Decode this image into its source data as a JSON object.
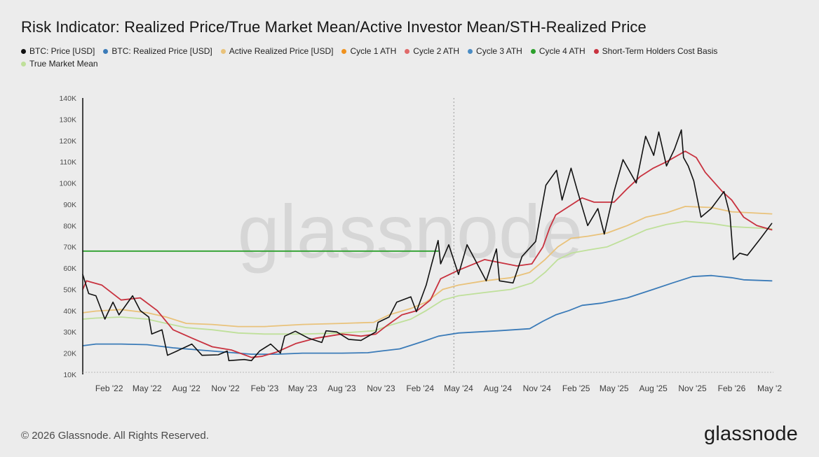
{
  "title": "Risk Indicator: Realized Price/True Market Mean/Active Investor Mean/STH-Realized Price",
  "watermark": "glassnode",
  "footer": {
    "copyright": "© 2026 Glassnode. All Rights Reserved.",
    "logo": "glassnode"
  },
  "legend": [
    {
      "label": "BTC: Price [USD]",
      "color": "#111111"
    },
    {
      "label": "BTC: Realized Price [USD]",
      "color": "#3b7bb8"
    },
    {
      "label": "Active Realized Price [USD]",
      "color": "#e9c27a"
    },
    {
      "label": "Cycle 1 ATH",
      "color": "#f0921e"
    },
    {
      "label": "Cycle 2 ATH",
      "color": "#e06a6a"
    },
    {
      "label": "Cycle 3 ATH",
      "color": "#4a8cc4"
    },
    {
      "label": "Cycle 4 ATH",
      "color": "#2ca02c"
    },
    {
      "label": "Short-Term Holders Cost Basis",
      "color": "#c8323f"
    },
    {
      "label": "True Market Mean",
      "color": "#bfe09a"
    }
  ],
  "chart_data": {
    "type": "line",
    "xlabel": "",
    "ylabel": "",
    "y_scale": "linear",
    "ylim": [
      10000,
      140000
    ],
    "y_ticks": [
      10000,
      20000,
      30000,
      40000,
      50000,
      60000,
      70000,
      80000,
      90000,
      100000,
      110000,
      120000,
      130000,
      140000
    ],
    "y_tick_labels": [
      "10K",
      "20K",
      "30K",
      "40K",
      "50K",
      "60K",
      "70K",
      "80K",
      "90K",
      "100K",
      "110K",
      "120K",
      "130K",
      "140K"
    ],
    "xlim": [
      "2021-12-01",
      "2026-05-10"
    ],
    "x_ticks": [
      "2022-02-01",
      "2022-05-01",
      "2022-08-01",
      "2022-11-01",
      "2023-02-01",
      "2023-05-01",
      "2023-08-01",
      "2023-11-01",
      "2024-02-01",
      "2024-05-01",
      "2024-08-01",
      "2024-11-01",
      "2025-02-01",
      "2025-05-01",
      "2025-08-01",
      "2025-11-01",
      "2026-02-01",
      "2026-05-01"
    ],
    "x_tick_labels": [
      "Feb '22",
      "May '22",
      "Aug '22",
      "Nov '22",
      "Feb '23",
      "May '23",
      "Aug '23",
      "Nov '23",
      "Feb '24",
      "May '24",
      "Aug '24",
      "Nov '24",
      "Feb '25",
      "May '25",
      "Aug '25",
      "Nov '25",
      "Feb '26",
      "May '2"
    ],
    "grid": false,
    "legend_position": "top",
    "vertical_marker": "2024-04-20",
    "series": [
      {
        "name": "BTC: Price [USD]",
        "color": "#111111",
        "points": [
          [
            "2021-12-01",
            57000
          ],
          [
            "2021-12-15",
            48000
          ],
          [
            "2022-01-01",
            47000
          ],
          [
            "2022-01-22",
            36000
          ],
          [
            "2022-02-10",
            44000
          ],
          [
            "2022-02-24",
            38000
          ],
          [
            "2022-03-28",
            47000
          ],
          [
            "2022-04-15",
            40000
          ],
          [
            "2022-05-05",
            37000
          ],
          [
            "2022-05-12",
            29000
          ],
          [
            "2022-06-05",
            31000
          ],
          [
            "2022-06-18",
            19000
          ],
          [
            "2022-07-10",
            21000
          ],
          [
            "2022-08-14",
            24300
          ],
          [
            "2022-09-07",
            19000
          ],
          [
            "2022-10-15",
            19200
          ],
          [
            "2022-11-05",
            21000
          ],
          [
            "2022-11-09",
            16500
          ],
          [
            "2022-12-15",
            17000
          ],
          [
            "2023-01-01",
            16500
          ],
          [
            "2023-01-20",
            21000
          ],
          [
            "2023-02-15",
            24300
          ],
          [
            "2023-03-10",
            20000
          ],
          [
            "2023-03-20",
            28000
          ],
          [
            "2023-04-14",
            30300
          ],
          [
            "2023-05-15",
            27000
          ],
          [
            "2023-06-15",
            25000
          ],
          [
            "2023-06-25",
            30500
          ],
          [
            "2023-07-20",
            30000
          ],
          [
            "2023-08-17",
            26500
          ],
          [
            "2023-09-15",
            26000
          ],
          [
            "2023-10-20",
            30000
          ],
          [
            "2023-10-25",
            34500
          ],
          [
            "2023-11-20",
            37000
          ],
          [
            "2023-12-08",
            44000
          ],
          [
            "2024-01-10",
            46500
          ],
          [
            "2024-01-23",
            39500
          ],
          [
            "2024-02-15",
            52000
          ],
          [
            "2024-02-28",
            62000
          ],
          [
            "2024-03-14",
            73000
          ],
          [
            "2024-03-20",
            62000
          ],
          [
            "2024-04-08",
            71000
          ],
          [
            "2024-05-01",
            57000
          ],
          [
            "2024-05-21",
            71000
          ],
          [
            "2024-07-05",
            54000
          ],
          [
            "2024-07-29",
            69000
          ],
          [
            "2024-08-05",
            54000
          ],
          [
            "2024-09-06",
            53000
          ],
          [
            "2024-09-27",
            65500
          ],
          [
            "2024-10-29",
            72500
          ],
          [
            "2024-11-12",
            88000
          ],
          [
            "2024-11-22",
            99000
          ],
          [
            "2024-12-17",
            106000
          ],
          [
            "2024-12-30",
            92000
          ],
          [
            "2025-01-20",
            107000
          ],
          [
            "2025-02-03",
            97000
          ],
          [
            "2025-02-28",
            80000
          ],
          [
            "2025-03-24",
            88000
          ],
          [
            "2025-04-08",
            76000
          ],
          [
            "2025-05-01",
            96000
          ],
          [
            "2025-05-22",
            111000
          ],
          [
            "2025-06-22",
            100000
          ],
          [
            "2025-07-14",
            122000
          ],
          [
            "2025-08-02",
            113000
          ],
          [
            "2025-08-14",
            124000
          ],
          [
            "2025-09-01",
            108000
          ],
          [
            "2025-09-20",
            116000
          ],
          [
            "2025-10-06",
            125000
          ],
          [
            "2025-10-11",
            112000
          ],
          [
            "2025-10-22",
            108000
          ],
          [
            "2025-11-04",
            101000
          ],
          [
            "2025-11-21",
            84000
          ],
          [
            "2025-12-15",
            88000
          ],
          [
            "2026-01-14",
            96000
          ],
          [
            "2026-01-28",
            85000
          ],
          [
            "2026-02-05",
            64000
          ],
          [
            "2026-02-20",
            67000
          ],
          [
            "2026-03-10",
            66000
          ],
          [
            "2026-04-10",
            74000
          ],
          [
            "2026-05-06",
            81000
          ]
        ]
      },
      {
        "name": "BTC: Realized Price [USD]",
        "color": "#3b7bb8",
        "points": [
          [
            "2021-12-01",
            23500
          ],
          [
            "2022-01-01",
            24300
          ],
          [
            "2022-03-01",
            24300
          ],
          [
            "2022-05-01",
            24000
          ],
          [
            "2022-07-01",
            22500
          ],
          [
            "2022-09-01",
            21500
          ],
          [
            "2022-11-01",
            20500
          ],
          [
            "2023-01-01",
            19500
          ],
          [
            "2023-03-01",
            19500
          ],
          [
            "2023-05-01",
            20000
          ],
          [
            "2023-08-01",
            20000
          ],
          [
            "2023-10-01",
            20200
          ],
          [
            "2023-11-01",
            21000
          ],
          [
            "2023-12-15",
            22000
          ],
          [
            "2024-01-15",
            24000
          ],
          [
            "2024-02-15",
            26000
          ],
          [
            "2024-03-15",
            28000
          ],
          [
            "2024-05-01",
            29500
          ],
          [
            "2024-08-01",
            30500
          ],
          [
            "2024-10-15",
            31500
          ],
          [
            "2024-11-15",
            35000
          ],
          [
            "2024-12-15",
            38000
          ],
          [
            "2025-01-15",
            40000
          ],
          [
            "2025-02-15",
            42500
          ],
          [
            "2025-04-01",
            43500
          ],
          [
            "2025-06-01",
            46000
          ],
          [
            "2025-08-01",
            50000
          ],
          [
            "2025-09-15",
            53000
          ],
          [
            "2025-11-01",
            56000
          ],
          [
            "2025-12-15",
            56500
          ],
          [
            "2026-02-01",
            55500
          ],
          [
            "2026-03-01",
            54500
          ],
          [
            "2026-05-06",
            54000
          ]
        ]
      },
      {
        "name": "Active Realized Price [USD]",
        "color": "#e9c27a",
        "points": [
          [
            "2021-12-01",
            39000
          ],
          [
            "2022-01-01",
            39800
          ],
          [
            "2022-03-01",
            40500
          ],
          [
            "2022-05-01",
            39000
          ],
          [
            "2022-06-15",
            37000
          ],
          [
            "2022-08-01",
            34000
          ],
          [
            "2022-10-01",
            33500
          ],
          [
            "2022-12-01",
            32500
          ],
          [
            "2023-02-01",
            32500
          ],
          [
            "2023-05-01",
            33500
          ],
          [
            "2023-08-01",
            34000
          ],
          [
            "2023-10-15",
            34500
          ],
          [
            "2023-11-20",
            38000
          ],
          [
            "2024-01-10",
            41000
          ],
          [
            "2024-02-15",
            44000
          ],
          [
            "2024-03-25",
            50000
          ],
          [
            "2024-05-01",
            52000
          ],
          [
            "2024-07-01",
            54000
          ],
          [
            "2024-09-01",
            55500
          ],
          [
            "2024-10-15",
            58000
          ],
          [
            "2024-11-20",
            64000
          ],
          [
            "2024-12-20",
            70000
          ],
          [
            "2025-01-20",
            74000
          ],
          [
            "2025-03-01",
            75000
          ],
          [
            "2025-04-15",
            76500
          ],
          [
            "2025-06-01",
            80000
          ],
          [
            "2025-07-15",
            84000
          ],
          [
            "2025-09-01",
            86000
          ],
          [
            "2025-10-15",
            89000
          ],
          [
            "2025-12-15",
            88500
          ],
          [
            "2026-02-01",
            86500
          ],
          [
            "2026-05-06",
            85500
          ]
        ]
      },
      {
        "name": "Cycle 4 ATH",
        "color": "#2ca02c",
        "points": [
          [
            "2021-12-01",
            68000
          ],
          [
            "2024-03-14",
            68000
          ]
        ]
      },
      {
        "name": "Short-Term Holders Cost Basis",
        "color": "#c8323f",
        "points": [
          [
            "2021-12-01",
            50000
          ],
          [
            "2021-12-10",
            54000
          ],
          [
            "2022-01-15",
            52000
          ],
          [
            "2022-03-01",
            45000
          ],
          [
            "2022-04-15",
            46000
          ],
          [
            "2022-05-25",
            40000
          ],
          [
            "2022-07-01",
            31000
          ],
          [
            "2022-08-15",
            27000
          ],
          [
            "2022-10-01",
            23000
          ],
          [
            "2022-11-15",
            21500
          ],
          [
            "2023-01-01",
            18000
          ],
          [
            "2023-01-25",
            18500
          ],
          [
            "2023-03-01",
            20500
          ],
          [
            "2023-04-15",
            24500
          ],
          [
            "2023-06-01",
            27000
          ],
          [
            "2023-08-01",
            29000
          ],
          [
            "2023-09-15",
            28000
          ],
          [
            "2023-10-20",
            29000
          ],
          [
            "2023-11-15",
            33000
          ],
          [
            "2023-12-20",
            38000
          ],
          [
            "2024-01-25",
            40000
          ],
          [
            "2024-02-25",
            45000
          ],
          [
            "2024-03-20",
            55000
          ],
          [
            "2024-05-01",
            59000
          ],
          [
            "2024-07-01",
            64000
          ],
          [
            "2024-09-15",
            61000
          ],
          [
            "2024-10-20",
            62000
          ],
          [
            "2024-11-15",
            70000
          ],
          [
            "2024-12-01",
            79000
          ],
          [
            "2024-12-15",
            85000
          ],
          [
            "2025-01-15",
            89000
          ],
          [
            "2025-02-15",
            93000
          ],
          [
            "2025-03-15",
            91000
          ],
          [
            "2025-05-01",
            91000
          ],
          [
            "2025-05-30",
            97000
          ],
          [
            "2025-07-01",
            103000
          ],
          [
            "2025-08-01",
            107000
          ],
          [
            "2025-09-01",
            110000
          ],
          [
            "2025-10-15",
            115000
          ],
          [
            "2025-11-10",
            112000
          ],
          [
            "2025-12-01",
            105000
          ],
          [
            "2026-01-10",
            96000
          ],
          [
            "2026-02-01",
            92000
          ],
          [
            "2026-03-01",
            84000
          ],
          [
            "2026-04-01",
            80000
          ],
          [
            "2026-05-06",
            78000
          ]
        ]
      },
      {
        "name": "True Market Mean",
        "color": "#bfe09a",
        "points": [
          [
            "2021-12-01",
            36000
          ],
          [
            "2022-01-01",
            36500
          ],
          [
            "2022-03-01",
            37000
          ],
          [
            "2022-05-01",
            36000
          ],
          [
            "2022-06-15",
            34000
          ],
          [
            "2022-08-01",
            32000
          ],
          [
            "2022-10-01",
            31000
          ],
          [
            "2022-12-01",
            29500
          ],
          [
            "2023-02-01",
            29000
          ],
          [
            "2023-05-01",
            29000
          ],
          [
            "2023-08-01",
            29500
          ],
          [
            "2023-10-15",
            30500
          ],
          [
            "2023-11-20",
            33000
          ],
          [
            "2024-01-10",
            36000
          ],
          [
            "2024-02-15",
            40000
          ],
          [
            "2024-03-25",
            45000
          ],
          [
            "2024-05-01",
            47000
          ],
          [
            "2024-07-01",
            48500
          ],
          [
            "2024-09-01",
            50000
          ],
          [
            "2024-10-20",
            53000
          ],
          [
            "2024-11-20",
            58000
          ],
          [
            "2024-12-20",
            64000
          ],
          [
            "2025-01-20",
            67000
          ],
          [
            "2025-03-01",
            68500
          ],
          [
            "2025-04-15",
            70000
          ],
          [
            "2025-06-01",
            74000
          ],
          [
            "2025-07-15",
            78000
          ],
          [
            "2025-09-01",
            80500
          ],
          [
            "2025-10-15",
            82000
          ],
          [
            "2025-12-15",
            81000
          ],
          [
            "2026-02-01",
            79500
          ],
          [
            "2026-05-06",
            78500
          ]
        ]
      }
    ]
  }
}
